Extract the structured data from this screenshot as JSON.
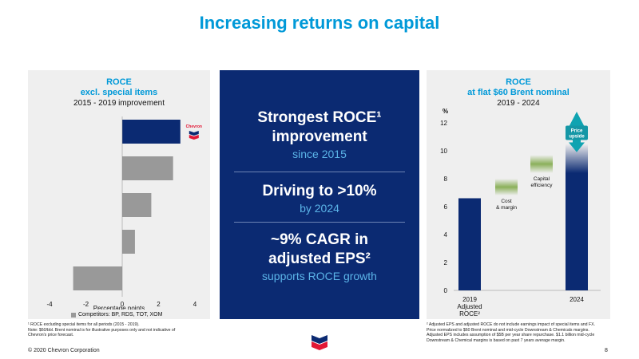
{
  "title": "Increasing returns on capital",
  "left": {
    "heading1": "ROCE",
    "heading2": "excl. special items",
    "subheading": "2015 - 2019 improvement",
    "legend": "Competitors: BP, RDS, TOT, XOM",
    "logo_label": "Chevron",
    "footnote": "¹ ROCE excluding special items for all periods (2015 - 2019).\nNote: $60/bbl. Brent nominal is for illustrative purposes only and not indicative of\nChevron's price forecast."
  },
  "center": {
    "block1_line1": "Strongest ROCE¹",
    "block1_line2": "improvement",
    "block1_sub": "since 2015",
    "block2_line1": "Driving to >10%",
    "block2_sub": "by 2024",
    "block3_line1": "~9% CAGR in",
    "block3_line2": "adjusted EPS²",
    "block3_sub": "supports ROCE growth"
  },
  "right": {
    "heading1": "ROCE",
    "heading2": "at flat $60 Brent nominal",
    "subheading": "2019 - 2024",
    "footnote": "² Adjusted EPS and adjusted ROCE do not include earnings impact of special items and FX.\n  Price normalized to $60 Brent nominal and mid-cycle Downstream & Chemicals margins.\n  Adjusted EPS includes assumption of $5B per year share repurchase. $1.1 billion mid-cycle\n  Downstream & Chemical margins is based on past 7 years average margin."
  },
  "footer": {
    "copyright": "© 2020 Chevron Corporation",
    "page": "8"
  },
  "colors": {
    "title_blue": "#0099d8",
    "navy": "#0b2a72",
    "competitor_gray": "#999999",
    "green": "#8bb05a",
    "panel_bg": "#efefef"
  },
  "chart_data": [
    {
      "type": "bar",
      "orientation": "horizontal",
      "title": "ROCE excl. special items",
      "subtitle": "2015 - 2019 improvement",
      "xlabel": "Percentage points",
      "xlim": [
        -4,
        4
      ],
      "xticks": [
        "-4",
        "-2",
        "0",
        "2",
        "4"
      ],
      "bars": [
        {
          "label": "Chevron",
          "value": 3.2,
          "color": "#0b2a72"
        },
        {
          "label": "",
          "value": 2.8,
          "color": "#999999"
        },
        {
          "label": "",
          "value": 1.6,
          "color": "#999999"
        },
        {
          "label": "",
          "value": 0.7,
          "color": "#999999"
        },
        {
          "label": "",
          "value": -2.7,
          "color": "#999999"
        }
      ],
      "legend": [
        "Competitors: BP, RDS, TOT, XOM"
      ]
    },
    {
      "type": "bar",
      "title": "ROCE at flat $60 Brent nominal",
      "subtitle": "2019 - 2024",
      "ylabel": "%",
      "ylim": [
        0,
        12
      ],
      "yticks": [
        "0",
        "2",
        "4",
        "6",
        "8",
        "10",
        "12"
      ],
      "categories": [
        "2019 Adjusted ROCE²",
        "Cost & margin",
        "Capital efficiency",
        "2024"
      ],
      "bars": [
        {
          "label": "2019\nAdjusted\nROCE²",
          "start": 0,
          "end": 6.6,
          "color": "#0b2a72"
        },
        {
          "label": "Cost\n& margin",
          "start": 6.8,
          "end": 8.0,
          "color": "#8bb05a"
        },
        {
          "label": "Capital\nefficiency",
          "start": 8.4,
          "end": 9.7,
          "color": "#8bb05a"
        },
        {
          "label": "2024",
          "start": 0,
          "end": 10.5,
          "color": "#0b2a72"
        }
      ],
      "annotations": [
        "Price upside"
      ]
    }
  ]
}
